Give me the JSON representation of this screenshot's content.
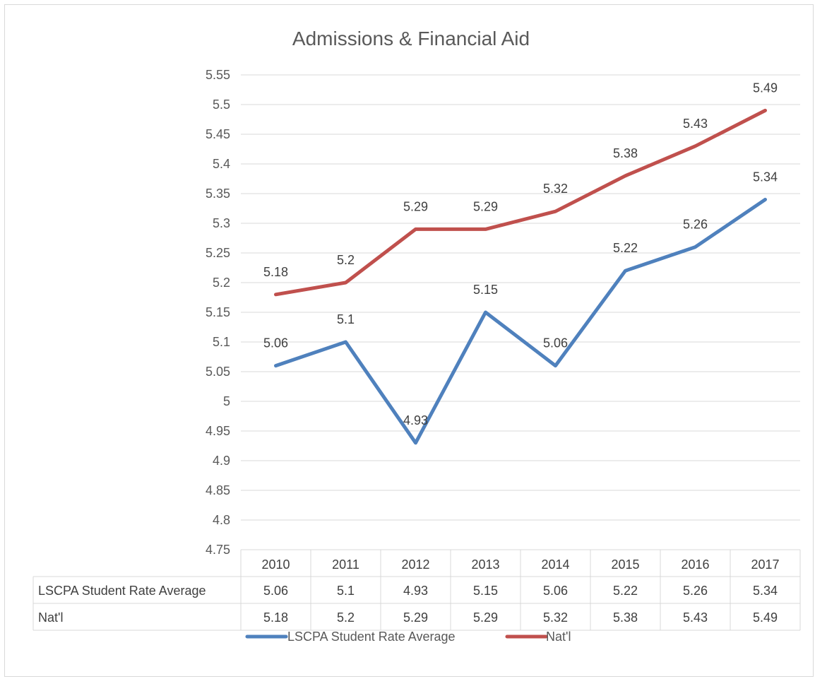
{
  "chart_data": {
    "type": "line",
    "title": "Admissions & Financial Aid",
    "categories": [
      "2010",
      "2011",
      "2012",
      "2013",
      "2014",
      "2015",
      "2016",
      "2017"
    ],
    "ylim": [
      4.75,
      5.55
    ],
    "ystep": 0.05,
    "yticks": [
      "4.75",
      "4.8",
      "4.85",
      "4.9",
      "4.95",
      "5",
      "5.05",
      "5.1",
      "5.15",
      "5.2",
      "5.25",
      "5.3",
      "5.35",
      "5.4",
      "5.45",
      "5.5",
      "5.55"
    ],
    "grid": true,
    "legend_position": "bottom",
    "data_table": true,
    "series": [
      {
        "name": "LSCPA Student Rate Average",
        "color": "#4f81bd",
        "values": [
          5.06,
          5.1,
          4.93,
          5.15,
          5.06,
          5.22,
          5.26,
          5.34
        ],
        "labels": [
          "5.06",
          "5.1",
          "4.93",
          "5.15",
          "5.06",
          "5.22",
          "5.26",
          "5.34"
        ]
      },
      {
        "name": "Nat'l",
        "color": "#c0504d",
        "values": [
          5.18,
          5.2,
          5.29,
          5.29,
          5.32,
          5.38,
          5.43,
          5.49
        ],
        "labels": [
          "5.18",
          "5.2",
          "5.29",
          "5.29",
          "5.32",
          "5.38",
          "5.43",
          "5.49"
        ]
      }
    ]
  }
}
